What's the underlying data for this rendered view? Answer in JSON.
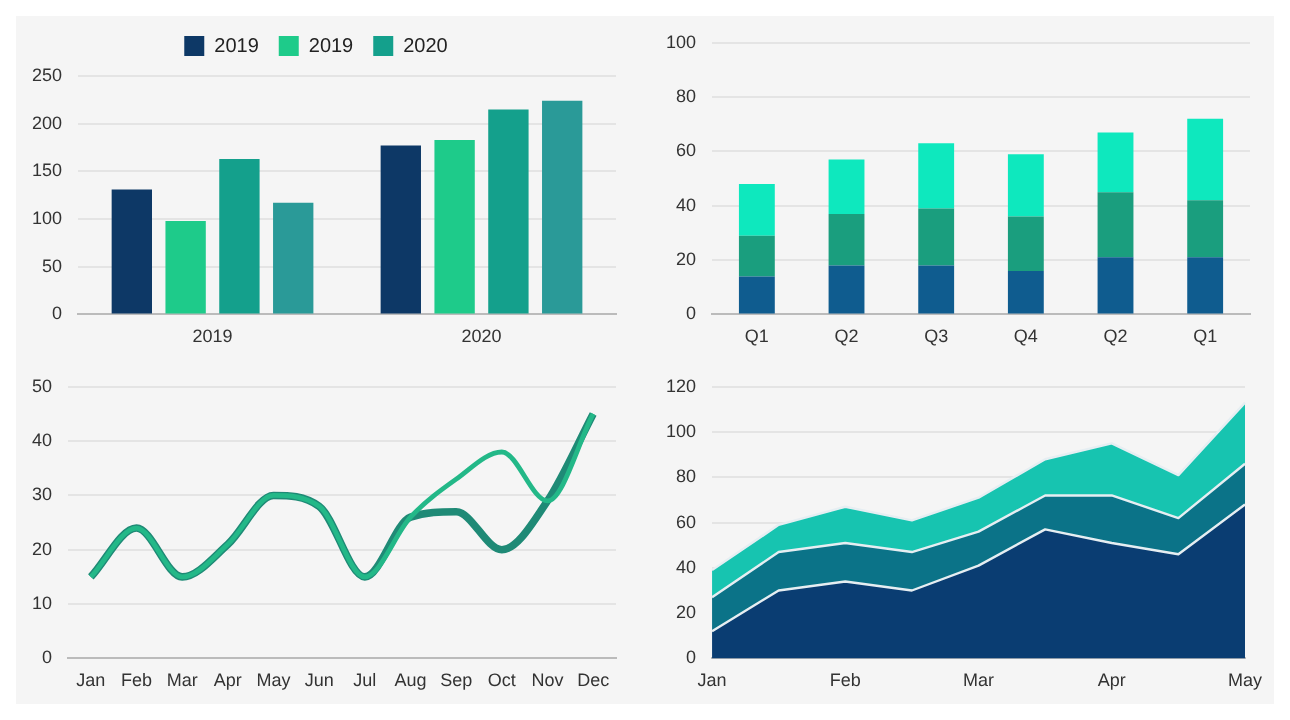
{
  "chart_data": [
    {
      "type": "bar",
      "categories": [
        "2019",
        "2020"
      ],
      "series": [
        {
          "name": "2019",
          "color": "#0d3866",
          "values": [
            131,
            177
          ]
        },
        {
          "name": "2019",
          "color": "#1ecb8a",
          "values": [
            98,
            183
          ]
        },
        {
          "name": "2020",
          "color": "#14a08c",
          "values": [
            163,
            215
          ]
        },
        {
          "color": "#2a9a98",
          "values": [
            117,
            224
          ]
        }
      ],
      "ylim": [
        0,
        250
      ],
      "yticks": [
        0,
        50,
        100,
        150,
        200,
        250
      ],
      "grid": "y",
      "legend": "top"
    },
    {
      "type": "bar",
      "stacked": true,
      "categories": [
        "Q1",
        "Q2",
        "Q3",
        "Q4",
        "Q2",
        "Q1"
      ],
      "series": [
        {
          "color": "#0f5c8f",
          "values": [
            14,
            18,
            18,
            16,
            21,
            21
          ]
        },
        {
          "color": "#1a9e7e",
          "values": [
            15,
            19,
            21,
            20,
            24,
            21
          ]
        },
        {
          "color": "#0ee8be",
          "values": [
            19,
            20,
            24,
            23,
            22,
            30
          ]
        }
      ],
      "ylim": [
        0,
        100
      ],
      "yticks": [
        0,
        20,
        40,
        60,
        80,
        100
      ],
      "grid": "y"
    },
    {
      "type": "line",
      "marker": "none",
      "categories": [
        "Jan",
        "Feb",
        "Mar",
        "Apr",
        "May",
        "Jun",
        "Jul",
        "Aug",
        "Sep",
        "Oct",
        "Nov",
        "Dec"
      ],
      "series": [
        {
          "color": "#23b888",
          "values": [
            15,
            24,
            15,
            21,
            30,
            28,
            15,
            26,
            33,
            38,
            29,
            45
          ]
        },
        {
          "color": "#1f8a76",
          "values": [
            15,
            24,
            15,
            21,
            30,
            28,
            15,
            26,
            27,
            20,
            29,
            45
          ]
        }
      ],
      "ylim": [
        0,
        50
      ],
      "yticks": [
        0,
        10,
        20,
        30,
        40,
        50
      ],
      "grid": "y"
    },
    {
      "type": "area",
      "stacked": true,
      "marker": "none",
      "categories": [
        "Jan",
        null,
        "Feb",
        null,
        "Mar",
        null,
        "Apr",
        null,
        "May"
      ],
      "series": [
        {
          "color": "#0a3d72",
          "values": [
            12,
            30,
            34,
            30,
            41,
            57,
            51,
            46,
            68
          ]
        },
        {
          "color": "#0b7388",
          "values": [
            15,
            17,
            17,
            17,
            15,
            15,
            21,
            16,
            18
          ]
        },
        {
          "color": "#17c4b0",
          "values": [
            12,
            12,
            16,
            14,
            15,
            16,
            23,
            19,
            27
          ]
        }
      ],
      "ylim": [
        0,
        120
      ],
      "yticks": [
        0,
        20,
        40,
        60,
        80,
        100,
        120
      ],
      "grid": "y"
    }
  ]
}
